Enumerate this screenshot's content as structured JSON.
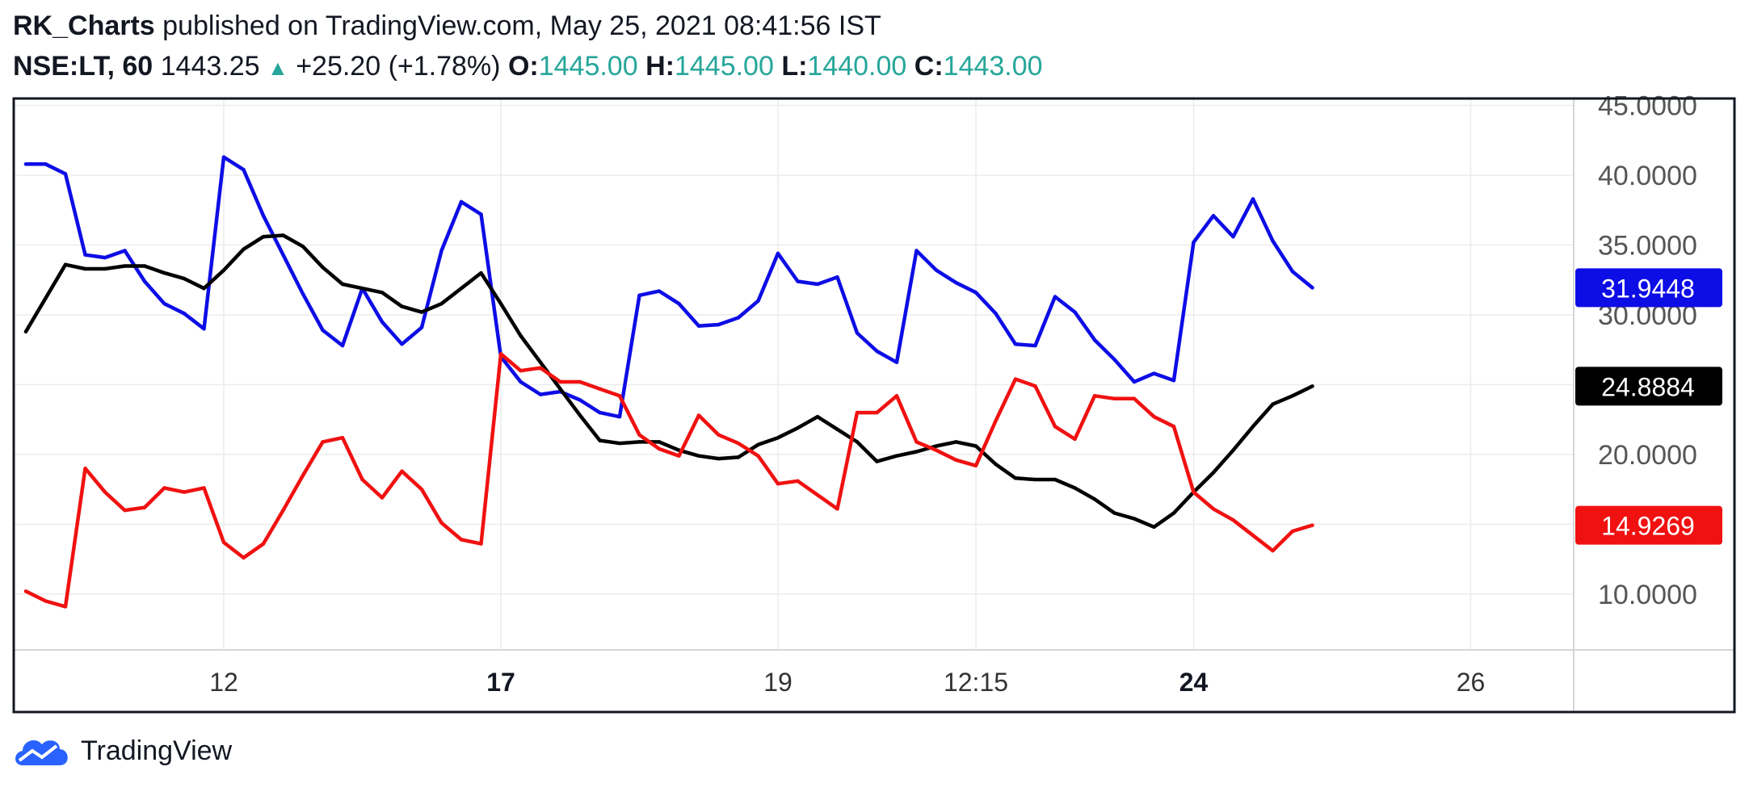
{
  "header": {
    "author": "RK_Charts",
    "published_text": "published on TradingView.com, May 25, 2021 08:41:56 IST",
    "symbol_tf": "NSE:LT, 60",
    "price": "1443.25",
    "change": "+25.20 (+1.78%)",
    "o_label": "O:",
    "o_value": "1445.00",
    "h_label": "H:",
    "h_value": "1445.00",
    "l_label": "L:",
    "l_value": "1440.00",
    "c_label": "C:",
    "c_value": "1443.00"
  },
  "brand": {
    "name": "TradingView"
  },
  "colors": {
    "up": "#26a69a",
    "blue": "#0d0de6",
    "black": "#000000",
    "red": "#f01111",
    "grid": "#ececec"
  },
  "chart_data": {
    "type": "line",
    "ylim": [
      6,
      45.5
    ],
    "y_ticks": [
      "10.0000",
      "20.0000",
      "30.0000",
      "35.0000",
      "40.0000",
      "45.0000"
    ],
    "y_tick_values": [
      10,
      20,
      30,
      35,
      40,
      45
    ],
    "x_ticks": [
      {
        "label": "12",
        "bold": false
      },
      {
        "label": "17",
        "bold": true
      },
      {
        "label": "19",
        "bold": false
      },
      {
        "label": "12:15",
        "bold": false
      },
      {
        "label": "24",
        "bold": true
      },
      {
        "label": "26",
        "bold": false
      }
    ],
    "x_tick_index": [
      10,
      24,
      38,
      48,
      59,
      73
    ],
    "series": [
      {
        "color": "#0d0de6",
        "last_label": "31.9448",
        "values": [
          40.8,
          40.8,
          40.1,
          34.3,
          34.1,
          34.6,
          32.4,
          30.8,
          30.1,
          29.0,
          41.3,
          40.4,
          37.1,
          34.3,
          31.5,
          28.9,
          27.8,
          31.9,
          29.5,
          27.9,
          29.1,
          34.6,
          38.1,
          37.2,
          27.0,
          25.2,
          24.3,
          24.5,
          23.9,
          23.0,
          22.7,
          31.4,
          31.7,
          30.8,
          29.2,
          29.3,
          29.8,
          31.0,
          34.4,
          32.4,
          32.2,
          32.7,
          28.7,
          27.4,
          26.6,
          34.6,
          33.2,
          32.3,
          31.6,
          30.1,
          27.9,
          27.8,
          31.3,
          30.2,
          28.2,
          26.8,
          25.2,
          25.8,
          25.3,
          35.2,
          37.1,
          35.6,
          38.3,
          35.3,
          33.1,
          31.9448
        ]
      },
      {
        "color": "#000000",
        "last_label": "24.8884",
        "values": [
          28.8,
          31.2,
          33.6,
          33.3,
          33.3,
          33.5,
          33.5,
          33.0,
          32.6,
          31.9,
          33.2,
          34.7,
          35.6,
          35.7,
          34.9,
          33.4,
          32.2,
          31.9,
          31.6,
          30.6,
          30.2,
          30.8,
          31.9,
          33.0,
          30.8,
          28.5,
          26.6,
          24.7,
          22.8,
          21.0,
          20.8,
          20.9,
          20.9,
          20.3,
          19.9,
          19.7,
          19.8,
          20.7,
          21.2,
          21.9,
          22.7,
          21.8,
          20.9,
          19.5,
          19.9,
          20.2,
          20.6,
          20.9,
          20.6,
          19.3,
          18.3,
          18.2,
          18.2,
          17.6,
          16.8,
          15.8,
          15.4,
          14.8,
          15.8,
          17.3,
          18.7,
          20.3,
          22.0,
          23.6,
          24.2,
          24.8884
        ]
      },
      {
        "color": "#f01111",
        "last_label": "14.9269",
        "values": [
          10.2,
          9.5,
          9.1,
          19.0,
          17.3,
          16.0,
          16.2,
          17.6,
          17.3,
          17.6,
          13.7,
          12.6,
          13.6,
          16.0,
          18.5,
          20.9,
          21.2,
          18.2,
          16.9,
          18.8,
          17.5,
          15.1,
          13.9,
          13.6,
          27.2,
          26.0,
          26.2,
          25.2,
          25.2,
          24.7,
          24.2,
          21.4,
          20.4,
          19.9,
          22.8,
          21.4,
          20.8,
          19.9,
          17.9,
          18.1,
          17.1,
          16.1,
          23.0,
          23.0,
          24.2,
          20.9,
          20.3,
          19.6,
          19.2,
          22.4,
          25.4,
          24.9,
          22.0,
          21.1,
          24.2,
          24.0,
          24.0,
          22.7,
          22.0,
          17.3,
          16.1,
          15.3,
          14.2,
          13.1,
          14.5,
          14.9269
        ]
      }
    ]
  }
}
